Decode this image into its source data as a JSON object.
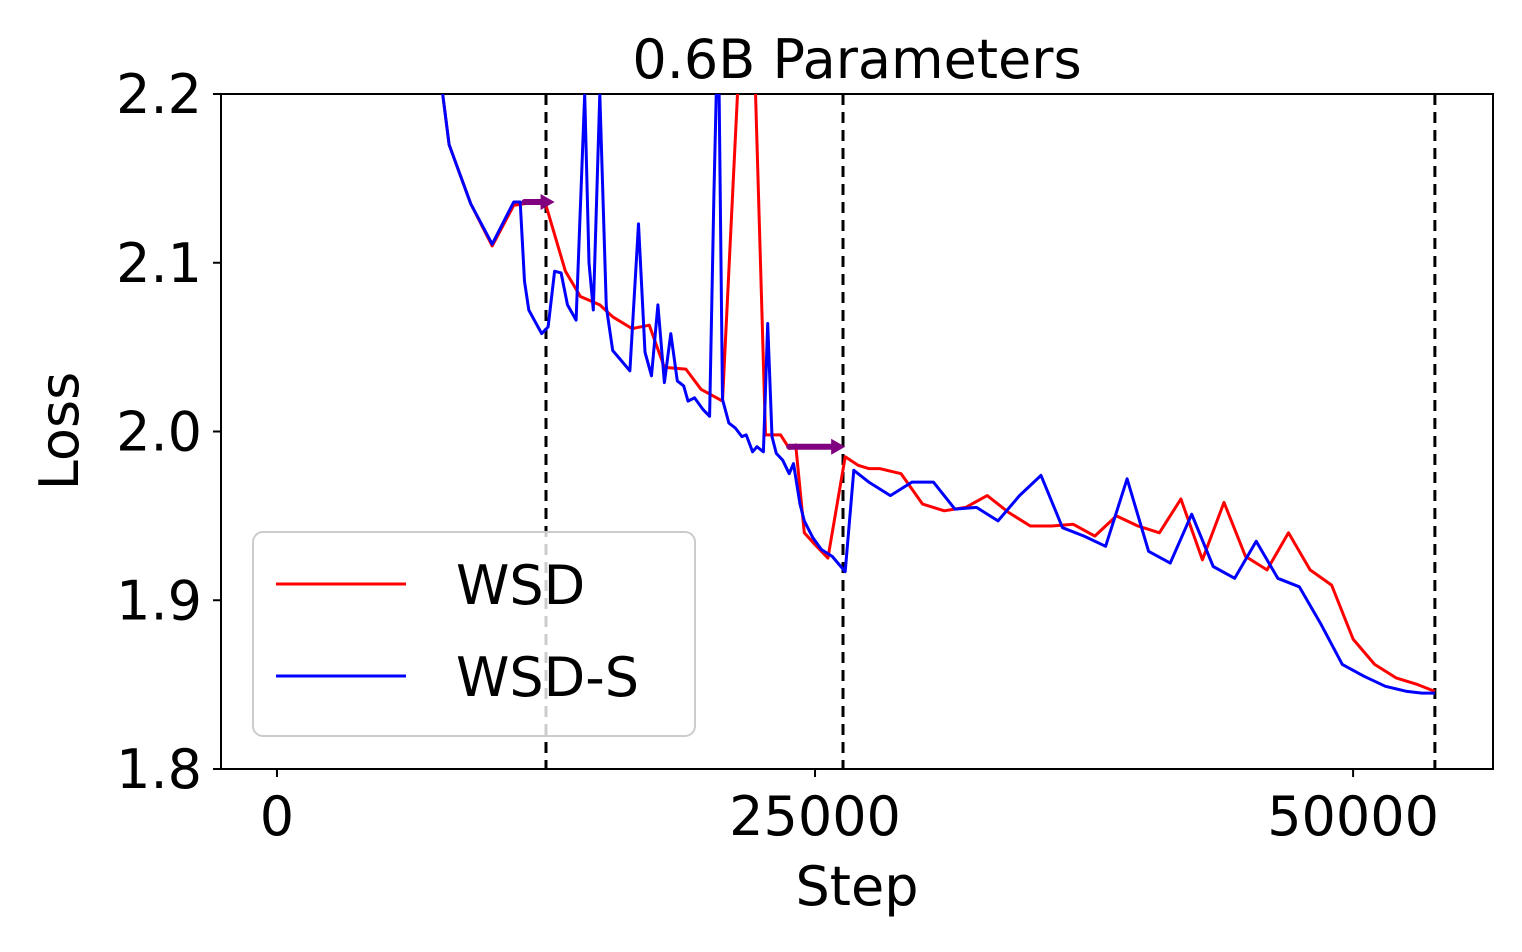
{
  "chart_data": {
    "type": "line",
    "title": "0.6B Parameters",
    "xlabel": "Step",
    "ylabel": "Loss",
    "xlim": [
      -2600,
      56500
    ],
    "ylim": [
      1.8,
      2.2
    ],
    "xticks": [
      0,
      25000,
      50000
    ],
    "xtick_labels": [
      "0",
      "25000",
      "50000"
    ],
    "yticks": [
      1.8,
      1.9,
      2.0,
      2.1,
      2.2
    ],
    "ytick_labels": [
      "1.8",
      "1.9",
      "2.0",
      "2.1",
      "2.2"
    ],
    "grid": false,
    "legend_position": "lower-left",
    "vlines": [
      12500,
      26300,
      53800
    ],
    "arrow_color": "#800080",
    "arrows": [
      {
        "x_start": 11500,
        "x_end": 12900,
        "y": 2.136
      },
      {
        "x_start": 23800,
        "x_end": 26400,
        "y": 1.991
      }
    ],
    "series": [
      {
        "name": "WSD",
        "color": "#ff0000",
        "x": [
          7500,
          8000,
          9000,
          10000,
          11000,
          12000,
          12500,
          13400,
          14100,
          15000,
          15600,
          16500,
          17300,
          18000,
          19000,
          19700,
          20700,
          21400,
          21800,
          22100,
          22700,
          23400,
          23800,
          24100,
          24500,
          25000,
          25600,
          26400,
          27000,
          27500,
          28000,
          29000,
          30000,
          31000,
          32000,
          33000,
          34000,
          35000,
          36000,
          37000,
          38000,
          39000,
          40000,
          41000,
          42000,
          43000,
          44000,
          45000,
          46000,
          47000,
          48000,
          49000,
          50000,
          51000,
          52000,
          53000,
          53800
        ],
        "y": [
          2.22,
          2.17,
          2.135,
          2.11,
          2.134,
          2.136,
          2.134,
          2.095,
          2.08,
          2.075,
          2.068,
          2.061,
          2.063,
          2.038,
          2.037,
          2.025,
          2.018,
          2.2,
          2.25,
          2.26,
          1.998,
          1.998,
          1.99,
          1.992,
          1.94,
          1.933,
          1.925,
          1.985,
          1.98,
          1.978,
          1.978,
          1.975,
          1.957,
          1.953,
          1.955,
          1.962,
          1.952,
          1.944,
          1.944,
          1.945,
          1.938,
          1.95,
          1.944,
          1.94,
          1.96,
          1.924,
          1.958,
          1.926,
          1.918,
          1.94,
          1.918,
          1.909,
          1.877,
          1.862,
          1.854,
          1.85,
          1.846
        ]
      },
      {
        "name": "WSD-S",
        "color": "#0000ff",
        "x": [
          7500,
          8000,
          9000,
          10000,
          11000,
          11300,
          11500,
          11700,
          12000,
          12300,
          12600,
          12900,
          13200,
          13500,
          13900,
          14300,
          14500,
          14700,
          15000,
          15300,
          15600,
          16000,
          16400,
          16800,
          17100,
          17400,
          17700,
          18000,
          18300,
          18600,
          18900,
          19100,
          19400,
          19800,
          20100,
          20300,
          20500,
          20700,
          21000,
          21300,
          21600,
          21800,
          22100,
          22300,
          22600,
          22800,
          23000,
          23200,
          23500,
          23800,
          24000,
          24300,
          24500,
          24900,
          25300,
          25800,
          26400,
          26800,
          27500,
          28500,
          29500,
          30500,
          31500,
          32500,
          33500,
          34500,
          35500,
          36500,
          37500,
          38500,
          39500,
          40500,
          41500,
          42500,
          43500,
          44500,
          45500,
          46500,
          47500,
          48500,
          49500,
          50500,
          51500,
          52500,
          53200,
          53800
        ],
        "y": [
          2.22,
          2.17,
          2.135,
          2.111,
          2.136,
          2.136,
          2.089,
          2.072,
          2.065,
          2.058,
          2.062,
          2.095,
          2.094,
          2.075,
          2.066,
          2.2,
          2.1,
          2.072,
          2.2,
          2.074,
          2.048,
          2.042,
          2.036,
          2.123,
          2.047,
          2.033,
          2.075,
          2.029,
          2.058,
          2.03,
          2.027,
          2.018,
          2.02,
          2.013,
          2.009,
          2.14,
          2.25,
          2.019,
          2.005,
          2.002,
          1.997,
          1.998,
          1.988,
          1.991,
          1.988,
          2.064,
          1.997,
          1.987,
          1.983,
          1.975,
          1.981,
          1.957,
          1.947,
          1.937,
          1.93,
          1.926,
          1.917,
          1.977,
          1.97,
          1.962,
          1.97,
          1.97,
          1.954,
          1.955,
          1.947,
          1.962,
          1.974,
          1.943,
          1.938,
          1.932,
          1.972,
          1.929,
          1.922,
          1.951,
          1.92,
          1.913,
          1.935,
          1.913,
          1.908,
          1.886,
          1.862,
          1.855,
          1.849,
          1.846,
          1.845,
          1.845
        ]
      }
    ]
  }
}
